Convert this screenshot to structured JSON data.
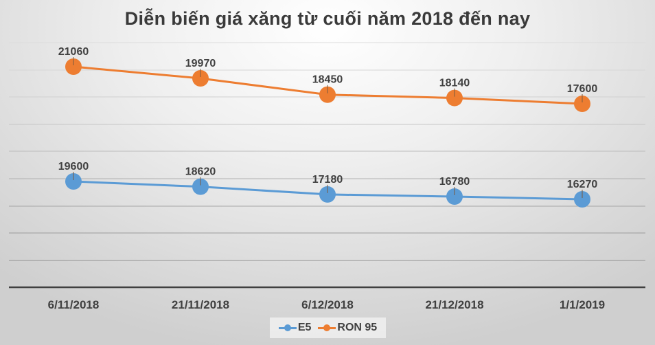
{
  "chart_data": {
    "type": "line",
    "title": "Diễn biến giá xăng từ cuối năm 2018 đến nay",
    "xlabel": "",
    "ylabel": "",
    "categories": [
      "6/11/2018",
      "21/11/2018",
      "6/12/2018",
      "21/12/2018",
      "1/1/2019"
    ],
    "series": [
      {
        "name": "E5",
        "color": "#5B9BD5",
        "values": [
          19600,
          18620,
          17180,
          16780,
          16270
        ],
        "labels": [
          "19600",
          "18620",
          "17180",
          "16780",
          "16270"
        ]
      },
      {
        "name": "RON 95",
        "color": "#ED7D31",
        "values": [
          21060,
          19970,
          18450,
          18140,
          17600
        ],
        "labels": [
          "21060",
          "19970",
          "18450",
          "18140",
          "17600"
        ]
      }
    ],
    "grid": true,
    "y_axis_visible": false,
    "data_labels": true,
    "legend_position": "bottom"
  },
  "legend": {
    "items": [
      {
        "label": "E5",
        "color": "#5B9BD5"
      },
      {
        "label": "RON 95",
        "color": "#ED7D31"
      }
    ]
  }
}
